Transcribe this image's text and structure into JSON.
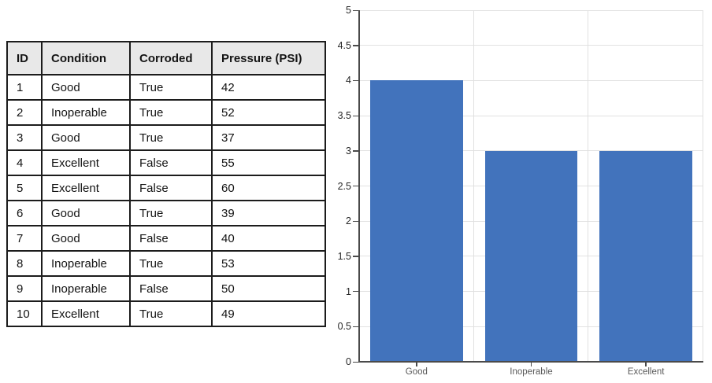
{
  "table": {
    "headers": [
      "ID",
      "Condition",
      "Corroded",
      "Pressure (PSI)"
    ],
    "rows": [
      [
        "1",
        "Good",
        "True",
        "42"
      ],
      [
        "2",
        "Inoperable",
        "True",
        "52"
      ],
      [
        "3",
        "Good",
        "True",
        "37"
      ],
      [
        "4",
        "Excellent",
        "False",
        "55"
      ],
      [
        "5",
        "Excellent",
        "False",
        "60"
      ],
      [
        "6",
        "Good",
        "True",
        "39"
      ],
      [
        "7",
        "Good",
        "False",
        "40"
      ],
      [
        "8",
        "Inoperable",
        "True",
        "53"
      ],
      [
        "9",
        "Inoperable",
        "False",
        "50"
      ],
      [
        "10",
        "Excellent",
        "True",
        "49"
      ]
    ]
  },
  "chart_data": {
    "type": "bar",
    "categories": [
      "Good",
      "Inoperable",
      "Excellent"
    ],
    "values": [
      4,
      3,
      3
    ],
    "title": "",
    "xlabel": "",
    "ylabel": "",
    "ylim": [
      0,
      5
    ],
    "ytick_step": 0.5,
    "ytick_labels": [
      "0",
      "0.5",
      "1",
      "1.5",
      "2",
      "2.5",
      "3",
      "3.5",
      "4",
      "4.5",
      "5"
    ],
    "grid": true,
    "legend": "none",
    "bar_color": "#4273BC",
    "gridline_color": "#e2e2e2",
    "axis_color": "#4a4a4a"
  }
}
